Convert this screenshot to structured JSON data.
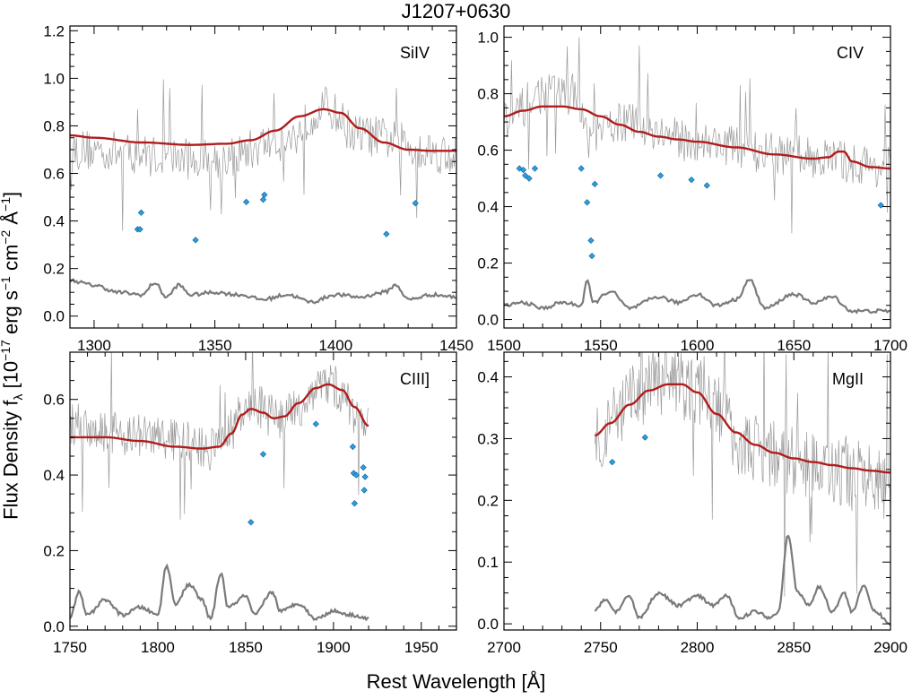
{
  "title": "J1207+0630",
  "xlabel": "Rest Wavelength [Å]",
  "ylabel": {
    "pre": "Flux Density f",
    "sub": "λ",
    "post": " [10",
    "e1": "−17",
    "t1": " erg s",
    "e2": "−1",
    "t2": " cm",
    "e3": "−2",
    "t3": " Å",
    "e4": "−1",
    "t4": "]"
  },
  "colors": {
    "model": "#b01c1c",
    "spectrum": "#9a9a9a",
    "error": "#7a7a7a",
    "marker": "#2a9fe0"
  },
  "chart_data": [
    {
      "type": "line",
      "label": "SiIV",
      "xlim": [
        1290,
        1450
      ],
      "ylim": [
        -0.05,
        1.22
      ],
      "xticks": [
        1300,
        1350,
        1400,
        1450
      ],
      "yticks": [
        0.0,
        0.2,
        0.4,
        0.6,
        0.8,
        1.0,
        1.2
      ],
      "ytick_labels": [
        "0.0",
        "0.2",
        "0.4",
        "0.6",
        "0.8",
        "1.0",
        "1.2"
      ],
      "model": [
        [
          1290,
          0.76
        ],
        [
          1300,
          0.75
        ],
        [
          1320,
          0.73
        ],
        [
          1340,
          0.72
        ],
        [
          1355,
          0.725
        ],
        [
          1365,
          0.74
        ],
        [
          1375,
          0.78
        ],
        [
          1385,
          0.84
        ],
        [
          1395,
          0.87
        ],
        [
          1402,
          0.855
        ],
        [
          1410,
          0.79
        ],
        [
          1420,
          0.73
        ],
        [
          1430,
          0.7
        ],
        [
          1440,
          0.695
        ],
        [
          1450,
          0.695
        ]
      ],
      "spectrum_base": [
        [
          1290,
          0.7
        ],
        [
          1350,
          0.66
        ],
        [
          1380,
          0.74
        ],
        [
          1395,
          0.88
        ],
        [
          1410,
          0.76
        ],
        [
          1450,
          0.68
        ]
      ],
      "spectrum_xmax": 1450,
      "error": [
        [
          1290,
          0.15
        ],
        [
          1300,
          0.13
        ],
        [
          1310,
          0.1
        ],
        [
          1320,
          0.09
        ],
        [
          1325,
          0.14
        ],
        [
          1330,
          0.08
        ],
        [
          1335,
          0.13
        ],
        [
          1340,
          0.09
        ],
        [
          1350,
          0.1
        ],
        [
          1360,
          0.09
        ],
        [
          1370,
          0.07
        ],
        [
          1380,
          0.09
        ],
        [
          1390,
          0.06
        ],
        [
          1400,
          0.09
        ],
        [
          1410,
          0.08
        ],
        [
          1420,
          0.1
        ],
        [
          1425,
          0.13
        ],
        [
          1430,
          0.07
        ],
        [
          1440,
          0.09
        ],
        [
          1450,
          0.08
        ]
      ],
      "markers": [
        [
          1318,
          0.365
        ],
        [
          1319,
          0.365
        ],
        [
          1319.5,
          0.435
        ],
        [
          1342,
          0.32
        ],
        [
          1363,
          0.48
        ],
        [
          1370,
          0.49
        ],
        [
          1370.5,
          0.51
        ],
        [
          1421,
          0.345
        ],
        [
          1433,
          0.475
        ]
      ]
    },
    {
      "type": "line",
      "label": "CIV",
      "xlim": [
        1500,
        1700
      ],
      "ylim": [
        -0.03,
        1.04
      ],
      "xticks": [
        1500,
        1550,
        1600,
        1650,
        1700
      ],
      "yticks": [
        0.0,
        0.2,
        0.4,
        0.6,
        0.8,
        1.0
      ],
      "ytick_labels": [
        "0.0",
        "0.2",
        "0.4",
        "0.6",
        "0.8",
        "1.0"
      ],
      "model": [
        [
          1500,
          0.72
        ],
        [
          1510,
          0.74
        ],
        [
          1520,
          0.755
        ],
        [
          1530,
          0.755
        ],
        [
          1540,
          0.745
        ],
        [
          1550,
          0.72
        ],
        [
          1560,
          0.69
        ],
        [
          1570,
          0.665
        ],
        [
          1580,
          0.648
        ],
        [
          1590,
          0.638
        ],
        [
          1600,
          0.63
        ],
        [
          1620,
          0.61
        ],
        [
          1640,
          0.585
        ],
        [
          1660,
          0.57
        ],
        [
          1668,
          0.575
        ],
        [
          1673,
          0.595
        ],
        [
          1676,
          0.595
        ],
        [
          1680,
          0.56
        ],
        [
          1690,
          0.54
        ],
        [
          1700,
          0.535
        ]
      ],
      "spectrum_base": [
        [
          1500,
          0.7
        ],
        [
          1520,
          0.8
        ],
        [
          1535,
          0.8
        ],
        [
          1545,
          0.64
        ],
        [
          1560,
          0.7
        ],
        [
          1600,
          0.63
        ],
        [
          1650,
          0.58
        ],
        [
          1700,
          0.54
        ]
      ],
      "spectrum_xmax": 1700,
      "error": [
        [
          1500,
          0.05
        ],
        [
          1510,
          0.06
        ],
        [
          1520,
          0.04
        ],
        [
          1530,
          0.06
        ],
        [
          1540,
          0.05
        ],
        [
          1543,
          0.14
        ],
        [
          1546,
          0.06
        ],
        [
          1555,
          0.1
        ],
        [
          1565,
          0.04
        ],
        [
          1580,
          0.08
        ],
        [
          1590,
          0.06
        ],
        [
          1600,
          0.09
        ],
        [
          1610,
          0.05
        ],
        [
          1620,
          0.07
        ],
        [
          1627,
          0.14
        ],
        [
          1635,
          0.04
        ],
        [
          1650,
          0.09
        ],
        [
          1660,
          0.06
        ],
        [
          1670,
          0.08
        ],
        [
          1680,
          0.03
        ],
        [
          1700,
          0.03
        ]
      ],
      "markers": [
        [
          1508,
          0.535
        ],
        [
          1510,
          0.53
        ],
        [
          1511,
          0.51
        ],
        [
          1513,
          0.5
        ],
        [
          1516,
          0.535
        ],
        [
          1540,
          0.535
        ],
        [
          1543,
          0.415
        ],
        [
          1545,
          0.28
        ],
        [
          1545.5,
          0.225
        ],
        [
          1547,
          0.48
        ],
        [
          1581,
          0.51
        ],
        [
          1597,
          0.495
        ],
        [
          1605,
          0.475
        ],
        [
          1695,
          0.405
        ]
      ]
    },
    {
      "type": "line",
      "label": "CIII]",
      "xlim": [
        1750,
        1970
      ],
      "ylim": [
        -0.01,
        0.725
      ],
      "xticks": [
        1750,
        1800,
        1850,
        1900,
        1950
      ],
      "yticks": [
        0.0,
        0.2,
        0.4,
        0.6
      ],
      "ytick_labels": [
        "0.0",
        "0.2",
        "0.4",
        "0.6"
      ],
      "model": [
        [
          1750,
          0.5
        ],
        [
          1770,
          0.5
        ],
        [
          1790,
          0.49
        ],
        [
          1810,
          0.475
        ],
        [
          1825,
          0.47
        ],
        [
          1835,
          0.475
        ],
        [
          1842,
          0.51
        ],
        [
          1848,
          0.56
        ],
        [
          1853,
          0.575
        ],
        [
          1860,
          0.565
        ],
        [
          1866,
          0.55
        ],
        [
          1872,
          0.555
        ],
        [
          1880,
          0.59
        ],
        [
          1890,
          0.63
        ],
        [
          1897,
          0.64
        ],
        [
          1905,
          0.625
        ],
        [
          1912,
          0.58
        ],
        [
          1920,
          0.53
        ]
      ],
      "spectrum_base": [
        [
          1750,
          0.53
        ],
        [
          1800,
          0.5
        ],
        [
          1830,
          0.47
        ],
        [
          1855,
          0.58
        ],
        [
          1870,
          0.55
        ],
        [
          1897,
          0.64
        ],
        [
          1920,
          0.53
        ]
      ],
      "spectrum_xmax": 1920,
      "error": [
        [
          1750,
          0.02
        ],
        [
          1755,
          0.09
        ],
        [
          1760,
          0.03
        ],
        [
          1770,
          0.07
        ],
        [
          1780,
          0.03
        ],
        [
          1790,
          0.05
        ],
        [
          1800,
          0.03
        ],
        [
          1805,
          0.16
        ],
        [
          1810,
          0.06
        ],
        [
          1818,
          0.11
        ],
        [
          1825,
          0.07
        ],
        [
          1830,
          0.02
        ],
        [
          1836,
          0.14
        ],
        [
          1840,
          0.05
        ],
        [
          1850,
          0.08
        ],
        [
          1855,
          0.03
        ],
        [
          1865,
          0.09
        ],
        [
          1870,
          0.04
        ],
        [
          1880,
          0.06
        ],
        [
          1890,
          0.02
        ],
        [
          1900,
          0.04
        ],
        [
          1910,
          0.03
        ],
        [
          1920,
          0.02
        ]
      ],
      "markers": [
        [
          1853,
          0.275
        ],
        [
          1860,
          0.455
        ],
        [
          1890,
          0.535
        ],
        [
          1911,
          0.475
        ],
        [
          1911.5,
          0.405
        ],
        [
          1912,
          0.325
        ],
        [
          1913,
          0.4
        ],
        [
          1917,
          0.42
        ],
        [
          1917.5,
          0.36
        ],
        [
          1918,
          0.395
        ]
      ]
    },
    {
      "type": "line",
      "label": "MgII",
      "xlim": [
        2700,
        2900
      ],
      "ylim": [
        -0.01,
        0.44
      ],
      "xticks": [
        2700,
        2750,
        2800,
        2850,
        2900
      ],
      "yticks": [
        0.0,
        0.1,
        0.2,
        0.3,
        0.4
      ],
      "ytick_labels": [
        "0.0",
        "0.1",
        "0.2",
        "0.3",
        "0.4"
      ],
      "model": [
        [
          2747,
          0.305
        ],
        [
          2755,
          0.325
        ],
        [
          2765,
          0.355
        ],
        [
          2775,
          0.378
        ],
        [
          2785,
          0.388
        ],
        [
          2792,
          0.388
        ],
        [
          2800,
          0.375
        ],
        [
          2810,
          0.34
        ],
        [
          2820,
          0.31
        ],
        [
          2830,
          0.29
        ],
        [
          2840,
          0.277
        ],
        [
          2850,
          0.268
        ],
        [
          2860,
          0.262
        ],
        [
          2870,
          0.257
        ],
        [
          2880,
          0.252
        ],
        [
          2890,
          0.248
        ],
        [
          2900,
          0.245
        ]
      ],
      "spectrum_base": [
        [
          2747,
          0.31
        ],
        [
          2780,
          0.39
        ],
        [
          2800,
          0.38
        ],
        [
          2830,
          0.28
        ],
        [
          2870,
          0.25
        ],
        [
          2900,
          0.22
        ]
      ],
      "spectrum_xmax": 2900,
      "error": [
        [
          2747,
          0.02
        ],
        [
          2752,
          0.04
        ],
        [
          2758,
          0.02
        ],
        [
          2765,
          0.045
        ],
        [
          2770,
          0.01
        ],
        [
          2780,
          0.05
        ],
        [
          2790,
          0.03
        ],
        [
          2800,
          0.045
        ],
        [
          2808,
          0.03
        ],
        [
          2815,
          0.045
        ],
        [
          2822,
          0.01
        ],
        [
          2830,
          0.02
        ],
        [
          2838,
          0.01
        ],
        [
          2842,
          0.02
        ],
        [
          2847,
          0.145
        ],
        [
          2852,
          0.05
        ],
        [
          2858,
          0.03
        ],
        [
          2863,
          0.06
        ],
        [
          2870,
          0.02
        ],
        [
          2876,
          0.05
        ],
        [
          2880,
          0.02
        ],
        [
          2886,
          0.06
        ],
        [
          2892,
          0.02
        ],
        [
          2900,
          0.0
        ]
      ],
      "markers": [
        [
          2756,
          0.262
        ],
        [
          2773,
          0.302
        ]
      ]
    }
  ]
}
